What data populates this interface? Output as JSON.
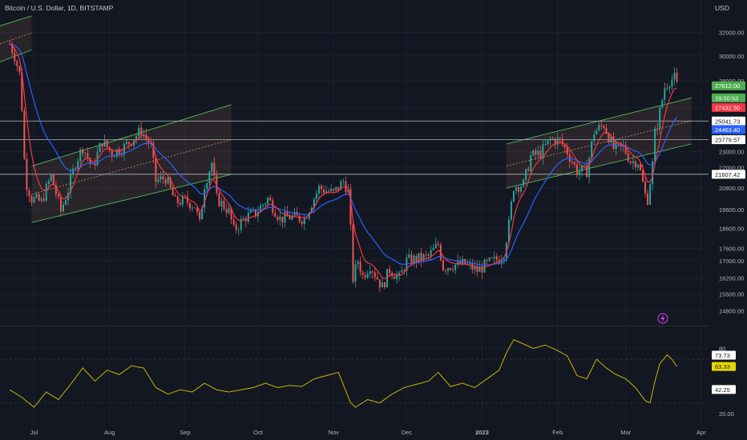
{
  "header": {
    "title": "Bitcoin / U.S. Dollar, 1D, BITSTAMP",
    "currency": "USD"
  },
  "colors": {
    "background": "#131722",
    "up_candle": "#26a69a",
    "down_candle": "#ef5350",
    "ema_red": "#f23645",
    "ema_blue": "#2962ff",
    "channel_line": "#4caf50",
    "channel_fill": "#f0a06a",
    "rsi_line": "#c8b400",
    "level_line": "#b2b5be",
    "last_price_tag": "#4caf50",
    "countdown_tag": "#4caf50",
    "ema_red_tag": "#f23645",
    "ema_blue_tag": "#2962ff",
    "rsi_tag": "#e8d700",
    "lightning_icon": "#e040fb"
  },
  "chart_data": [
    {
      "type": "candlestick",
      "title": "Bitcoin / U.S. Dollar, 1D, BITSTAMP",
      "ylabel": "USD",
      "x_ticks": [
        "Jul",
        "Aug",
        "Sep",
        "Oct",
        "Nov",
        "Dec",
        "2023",
        "Feb",
        "Mar",
        "Apr"
      ],
      "y_ticks": [
        32000,
        30000,
        28000,
        26000,
        25000,
        24000,
        23000,
        22000,
        20800,
        19600,
        18600,
        17600,
        17000,
        16200,
        15500,
        14800
      ],
      "y_tick_labels": [
        "32000.00",
        "30000.00",
        "28000.00",
        "26000.00",
        "25000.00",
        "24000.00",
        "23000.00",
        "22000.00",
        "20800.00",
        "19600.00",
        "18600.00",
        "17600.00",
        "17000.00",
        "16200.00",
        "15500.00",
        "14800.00"
      ],
      "scale": "log",
      "ylim": [
        14300,
        33800
      ],
      "close_series": [
        [
          "2022-06-21",
          31000
        ],
        [
          "2022-06-23",
          30000
        ],
        [
          "2022-06-25",
          28500
        ],
        [
          "2022-06-26",
          26000
        ],
        [
          "2022-06-27",
          22500
        ],
        [
          "2022-06-28",
          21000
        ],
        [
          "2022-06-30",
          20200
        ],
        [
          "2022-07-04",
          20000
        ],
        [
          "2022-07-08",
          21500
        ],
        [
          "2022-07-12",
          19500
        ],
        [
          "2022-07-15",
          20700
        ],
        [
          "2022-07-18",
          22300
        ],
        [
          "2022-07-21",
          23300
        ],
        [
          "2022-07-25",
          22000
        ],
        [
          "2022-07-29",
          23700
        ],
        [
          "2022-08-02",
          22900
        ],
        [
          "2022-08-07",
          23300
        ],
        [
          "2022-08-11",
          23900
        ],
        [
          "2022-08-14",
          24400
        ],
        [
          "2022-08-18",
          23300
        ],
        [
          "2022-08-20",
          21200
        ],
        [
          "2022-08-24",
          21400
        ],
        [
          "2022-08-28",
          20000
        ],
        [
          "2022-09-01",
          20100
        ],
        [
          "2022-09-05",
          19800
        ],
        [
          "2022-09-07",
          18800
        ],
        [
          "2022-09-09",
          21000
        ],
        [
          "2022-09-12",
          22300
        ],
        [
          "2022-09-14",
          20200
        ],
        [
          "2022-09-19",
          19500
        ],
        [
          "2022-09-21",
          18500
        ],
        [
          "2022-09-26",
          19200
        ],
        [
          "2022-09-30",
          19400
        ],
        [
          "2022-10-05",
          20200
        ],
        [
          "2022-10-10",
          19100
        ],
        [
          "2022-10-14",
          19200
        ],
        [
          "2022-10-20",
          19100
        ],
        [
          "2022-10-26",
          20800
        ],
        [
          "2022-11-01",
          20500
        ],
        [
          "2022-11-05",
          21200
        ],
        [
          "2022-11-07",
          20600
        ],
        [
          "2022-11-08",
          18500
        ],
        [
          "2022-11-09",
          16200
        ],
        [
          "2022-11-11",
          17000
        ],
        [
          "2022-11-13",
          16300
        ],
        [
          "2022-11-16",
          16800
        ],
        [
          "2022-11-21",
          15800
        ],
        [
          "2022-11-24",
          16600
        ],
        [
          "2022-11-28",
          16200
        ],
        [
          "2022-12-01",
          17000
        ],
        [
          "2022-12-06",
          17100
        ],
        [
          "2022-12-10",
          17200
        ],
        [
          "2022-12-14",
          17800
        ],
        [
          "2022-12-16",
          16700
        ],
        [
          "2022-12-20",
          16800
        ],
        [
          "2022-12-25",
          16850
        ],
        [
          "2022-12-30",
          16550
        ],
        [
          "2023-01-04",
          16900
        ],
        [
          "2023-01-08",
          17100
        ],
        [
          "2023-01-10",
          17400
        ],
        [
          "2023-01-12",
          18800
        ],
        [
          "2023-01-14",
          20900
        ],
        [
          "2023-01-18",
          21000
        ],
        [
          "2023-01-21",
          22700
        ],
        [
          "2023-01-25",
          22900
        ],
        [
          "2023-01-29",
          23800
        ],
        [
          "2023-02-02",
          23700
        ],
        [
          "2023-02-05",
          23000
        ],
        [
          "2023-02-09",
          21800
        ],
        [
          "2023-02-13",
          21800
        ],
        [
          "2023-02-16",
          24300
        ],
        [
          "2023-02-20",
          24800
        ],
        [
          "2023-02-24",
          23200
        ],
        [
          "2023-02-28",
          23300
        ],
        [
          "2023-03-03",
          22400
        ],
        [
          "2023-03-06",
          22400
        ],
        [
          "2023-03-09",
          20400
        ],
        [
          "2023-03-10",
          20200
        ],
        [
          "2023-03-12",
          22200
        ],
        [
          "2023-03-13",
          24200
        ],
        [
          "2023-03-14",
          24800
        ],
        [
          "2023-03-17",
          27500
        ],
        [
          "2023-03-19",
          28000
        ],
        [
          "2023-03-21",
          28200
        ],
        [
          "2023-03-22",
          27612
        ]
      ],
      "series": [
        {
          "color": "#f23645",
          "last_value": 27432.5
        },
        {
          "color": "#2962ff",
          "last_value": 24463.4
        }
      ],
      "price_levels": [
        25041.73,
        23779.57,
        21607.42
      ],
      "tags": {
        "last_price": "27612.00",
        "countdown": "19:50:53",
        "ema_red": "27432.50",
        "ema_blue": "24463.40",
        "level_1": "25041.73",
        "level_2": "23779.57",
        "level_3": "21607.42"
      }
    },
    {
      "type": "line",
      "y_ticks": [
        80,
        20
      ],
      "y_tick_labels": [
        "80",
        "20.00"
      ],
      "ylim": [
        15,
        95
      ],
      "levels": [
        70,
        30
      ],
      "tags": {
        "upper": "73.73",
        "current": "63.33",
        "lower": "42.25"
      },
      "values": [
        [
          "2022-06-21",
          42
        ],
        [
          "2022-06-26",
          35
        ],
        [
          "2022-07-01",
          26
        ],
        [
          "2022-07-06",
          40
        ],
        [
          "2022-07-11",
          33
        ],
        [
          "2022-07-16",
          47
        ],
        [
          "2022-07-21",
          62
        ],
        [
          "2022-07-26",
          50
        ],
        [
          "2022-07-31",
          60
        ],
        [
          "2022-08-05",
          56
        ],
        [
          "2022-08-10",
          64
        ],
        [
          "2022-08-15",
          62
        ],
        [
          "2022-08-20",
          44
        ],
        [
          "2022-08-25",
          38
        ],
        [
          "2022-08-30",
          42
        ],
        [
          "2022-09-04",
          40
        ],
        [
          "2022-09-09",
          48
        ],
        [
          "2022-09-14",
          42
        ],
        [
          "2022-09-19",
          40
        ],
        [
          "2022-09-24",
          42
        ],
        [
          "2022-09-29",
          44
        ],
        [
          "2022-10-04",
          48
        ],
        [
          "2022-10-09",
          44
        ],
        [
          "2022-10-14",
          46
        ],
        [
          "2022-10-19",
          45
        ],
        [
          "2022-10-24",
          52
        ],
        [
          "2022-10-29",
          55
        ],
        [
          "2022-11-03",
          58
        ],
        [
          "2022-11-08",
          30
        ],
        [
          "2022-11-10",
          26
        ],
        [
          "2022-11-15",
          33
        ],
        [
          "2022-11-20",
          30
        ],
        [
          "2022-11-25",
          38
        ],
        [
          "2022-11-30",
          44
        ],
        [
          "2022-12-05",
          47
        ],
        [
          "2022-12-10",
          50
        ],
        [
          "2022-12-14",
          58
        ],
        [
          "2022-12-19",
          45
        ],
        [
          "2022-12-24",
          48
        ],
        [
          "2022-12-29",
          44
        ],
        [
          "2023-01-03",
          52
        ],
        [
          "2023-01-08",
          60
        ],
        [
          "2023-01-11",
          76
        ],
        [
          "2023-01-14",
          88
        ],
        [
          "2023-01-18",
          84
        ],
        [
          "2023-01-22",
          80
        ],
        [
          "2023-01-27",
          83
        ],
        [
          "2023-02-01",
          78
        ],
        [
          "2023-02-05",
          73
        ],
        [
          "2023-02-09",
          55
        ],
        [
          "2023-02-13",
          52
        ],
        [
          "2023-02-17",
          70
        ],
        [
          "2023-02-21",
          62
        ],
        [
          "2023-02-25",
          56
        ],
        [
          "2023-03-01",
          52
        ],
        [
          "2023-03-05",
          44
        ],
        [
          "2023-03-09",
          32
        ],
        [
          "2023-03-11",
          30
        ],
        [
          "2023-03-13",
          50
        ],
        [
          "2023-03-15",
          66
        ],
        [
          "2023-03-18",
          74
        ],
        [
          "2023-03-20",
          70
        ],
        [
          "2023-03-22",
          63.33
        ]
      ]
    }
  ]
}
